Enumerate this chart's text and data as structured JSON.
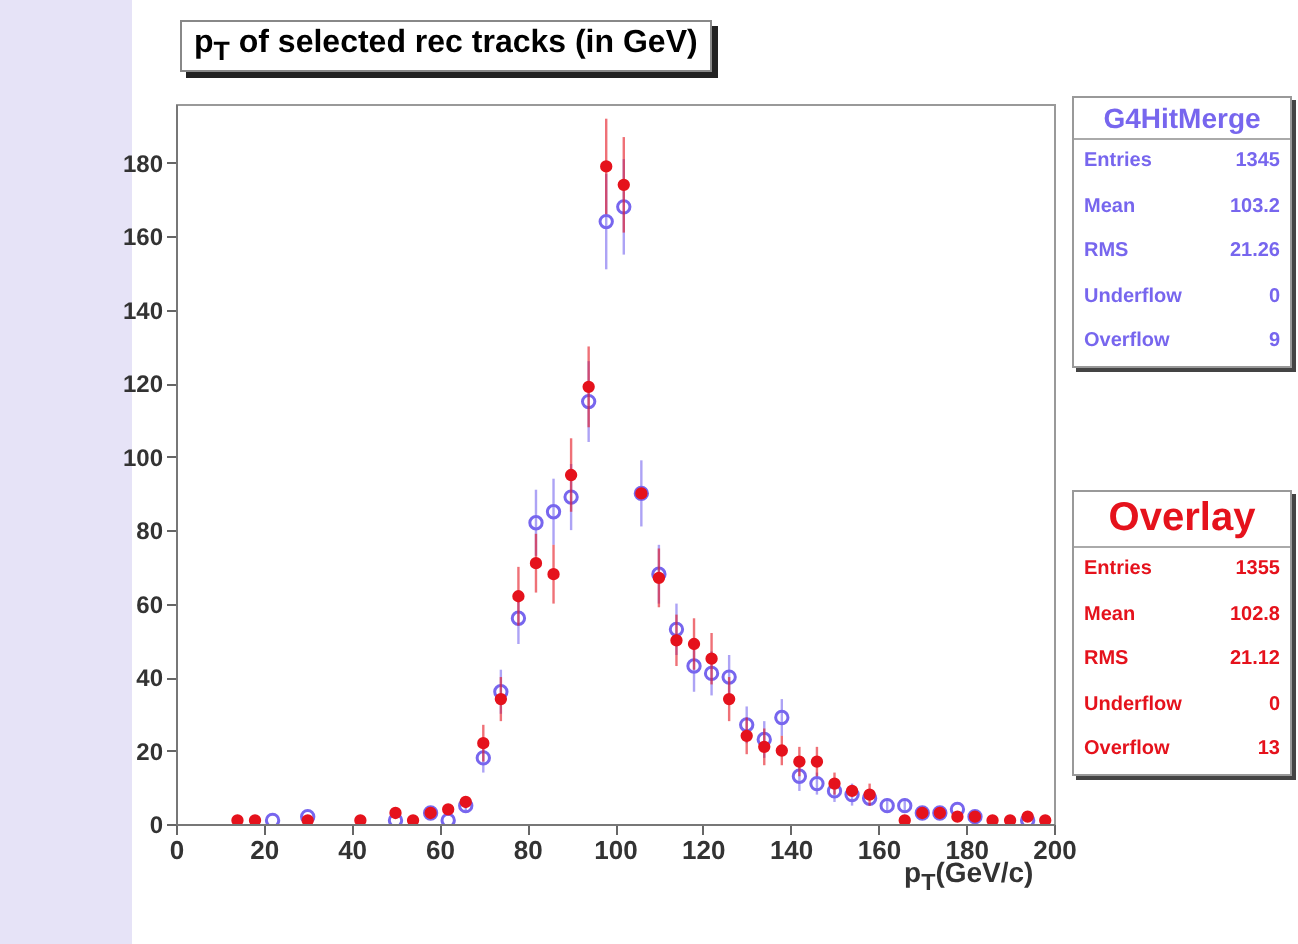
{
  "chart_data": {
    "type": "scatter",
    "title": "p$_{T}$ of selected rec tracks (in GeV)",
    "xlabel": "p$_{T}$(GeV/c)",
    "xlim": [
      0,
      200
    ],
    "xticks": [
      0,
      20,
      40,
      60,
      80,
      100,
      120,
      140,
      160,
      180,
      200
    ],
    "ylim": [
      0,
      196
    ],
    "yticks": [
      0,
      20,
      40,
      60,
      80,
      100,
      120,
      140,
      160,
      180
    ],
    "marker": "circle",
    "series": [
      {
        "name": "G4HitMerge",
        "color": "#7766ee",
        "x": [
          22,
          30,
          50,
          58,
          62,
          66,
          70,
          74,
          78,
          82,
          86,
          90,
          94,
          98,
          102,
          106,
          110,
          114,
          118,
          122,
          126,
          130,
          134,
          138,
          142,
          146,
          150,
          154,
          158,
          162,
          166,
          170,
          174,
          178,
          182,
          194
        ],
        "values": [
          1,
          2,
          1,
          3,
          1,
          5,
          18,
          36,
          56,
          82,
          85,
          89,
          115,
          164,
          168,
          90,
          68,
          53,
          43,
          41,
          40,
          27,
          23,
          29,
          13,
          11,
          9,
          8,
          7,
          5,
          5,
          3,
          3,
          4,
          2,
          1
        ],
        "errors": [
          null,
          null,
          null,
          null,
          null,
          2,
          4,
          6,
          7,
          9,
          9,
          9,
          11,
          13,
          13,
          9,
          8,
          7,
          7,
          6,
          6,
          5,
          5,
          5,
          4,
          3,
          3,
          3,
          null,
          2,
          2,
          null,
          null,
          null,
          null,
          null
        ]
      },
      {
        "name": "Overlay",
        "color": "#e5121c",
        "x": [
          14,
          18,
          30,
          42,
          50,
          54,
          58,
          62,
          66,
          70,
          74,
          78,
          82,
          86,
          90,
          94,
          98,
          102,
          106,
          110,
          114,
          118,
          122,
          126,
          130,
          134,
          138,
          142,
          146,
          150,
          154,
          158,
          166,
          170,
          174,
          178,
          182,
          186,
          190,
          194,
          198
        ],
        "values": [
          1,
          1,
          1,
          1,
          3,
          1,
          3,
          4,
          6,
          22,
          34,
          62,
          71,
          68,
          95,
          119,
          179,
          174,
          90,
          67,
          50,
          49,
          45,
          34,
          24,
          21,
          20,
          17,
          17,
          11,
          9,
          8,
          1,
          3,
          3,
          2,
          2,
          1,
          1,
          2,
          1
        ],
        "errors": [
          null,
          null,
          null,
          null,
          null,
          null,
          null,
          null,
          null,
          5,
          6,
          8,
          8,
          8,
          10,
          11,
          13,
          13,
          null,
          8,
          7,
          7,
          7,
          6,
          5,
          5,
          4,
          4,
          4,
          3,
          null,
          3,
          null,
          null,
          null,
          null,
          null,
          null,
          null,
          null,
          null
        ]
      }
    ],
    "annotations": [
      "Entries 1345",
      "Mean 103.2",
      "RMS 21.26",
      "Underflow 0",
      "Overflow 9",
      "Entries 1355",
      "Mean 102.8",
      "RMS 21.12",
      "Underflow 0",
      "Overflow 13"
    ]
  }
}
